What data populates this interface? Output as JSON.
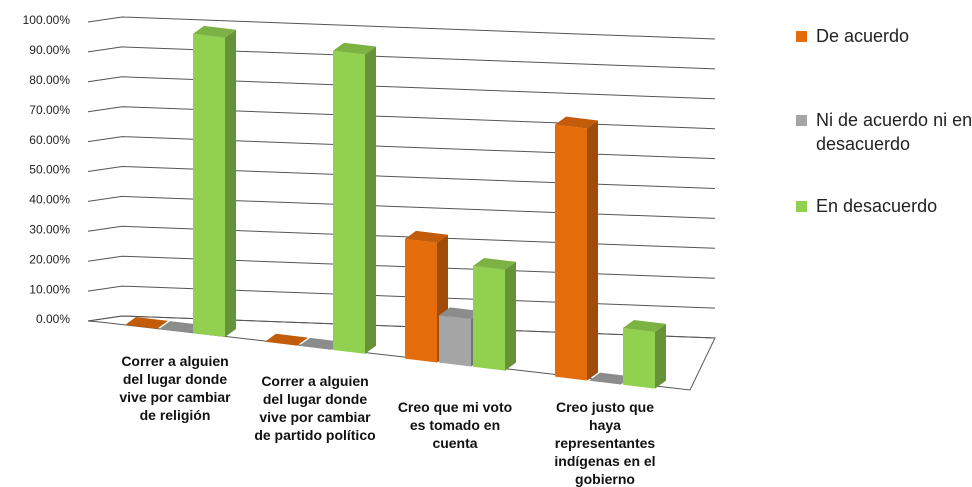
{
  "chart_data": {
    "type": "bar3d",
    "categories": [
      "Correr a alguien del lugar donde vive por cambiar de religión",
      "Correr a alguien del lugar donde vive por cambiar de partido político",
      "Creo que mi voto es tomado en cuenta",
      "Creo justo que haya representantes indígenas en el gobierno"
    ],
    "series": [
      {
        "name": "De acuerdo",
        "color": "#e46c0a",
        "values": [
          0,
          0,
          38,
          80
        ]
      },
      {
        "name": "Ni de acuerdo ni en desacuerdo",
        "color": "#a5a5a5",
        "values": [
          0,
          0,
          15,
          0
        ]
      },
      {
        "name": "En desacuerdo",
        "color": "#92d050",
        "values": [
          95,
          95,
          32,
          18
        ]
      }
    ],
    "ylim": [
      0,
      100
    ],
    "yticks": [
      {
        "value": 0,
        "label": "0.00%"
      },
      {
        "value": 10,
        "label": "10.00%"
      },
      {
        "value": 20,
        "label": "20.00%"
      },
      {
        "value": 30,
        "label": "30.00%"
      },
      {
        "value": 40,
        "label": "40.00%"
      },
      {
        "value": 50,
        "label": "50.00%"
      },
      {
        "value": 60,
        "label": "60.00%"
      },
      {
        "value": 70,
        "label": "70.00%"
      },
      {
        "value": 80,
        "label": "80.00%"
      },
      {
        "value": 90,
        "label": "90.00%"
      },
      {
        "value": 100,
        "label": "100.00%"
      }
    ],
    "grid": true,
    "legend": "right"
  }
}
